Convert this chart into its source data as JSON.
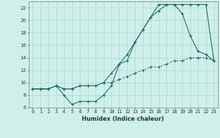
{
  "xlabel": "Humidex (Indice chaleur)",
  "bg_color": "#cff0ea",
  "grid_color": "#aad4cc",
  "line_color": "#1a6b5a",
  "xlim": [
    -0.5,
    23.5
  ],
  "ylim": [
    6,
    23
  ],
  "xticks": [
    0,
    1,
    2,
    3,
    4,
    5,
    6,
    7,
    8,
    9,
    10,
    11,
    12,
    13,
    14,
    15,
    16,
    17,
    18,
    19,
    20,
    21,
    22,
    23
  ],
  "yticks": [
    6,
    8,
    10,
    12,
    14,
    16,
    18,
    20,
    22
  ],
  "series1_x": [
    0,
    1,
    2,
    3,
    4,
    5,
    6,
    7,
    8,
    9,
    10,
    11,
    12,
    13,
    14,
    15,
    16,
    17,
    18,
    19,
    20,
    21,
    22,
    23
  ],
  "series1_y": [
    9.0,
    9.0,
    9.0,
    9.5,
    9.0,
    9.0,
    9.5,
    9.5,
    9.5,
    10.0,
    11.5,
    13.0,
    14.5,
    16.5,
    18.5,
    20.5,
    22.5,
    22.5,
    22.5,
    22.5,
    22.5,
    22.5,
    22.5,
    13.5
  ],
  "series2_x": [
    0,
    1,
    2,
    3,
    4,
    5,
    6,
    7,
    8,
    9,
    10,
    11,
    12,
    13,
    14,
    15,
    16,
    17,
    18,
    19,
    20,
    21,
    22,
    23
  ],
  "series2_y": [
    9.0,
    9.0,
    9.0,
    9.5,
    8.0,
    6.5,
    7.0,
    7.0,
    7.0,
    8.0,
    9.5,
    13.0,
    13.5,
    16.5,
    18.5,
    20.5,
    21.5,
    22.5,
    22.5,
    21.0,
    17.5,
    15.0,
    14.5,
    13.5
  ],
  "series3_x": [
    0,
    1,
    2,
    3,
    4,
    5,
    6,
    7,
    8,
    9,
    10,
    11,
    12,
    13,
    14,
    15,
    16,
    17,
    18,
    19,
    20,
    21,
    22,
    23
  ],
  "series3_y": [
    9.0,
    9.0,
    9.0,
    9.5,
    9.0,
    9.0,
    9.5,
    9.5,
    9.5,
    10.0,
    10.0,
    10.5,
    11.0,
    11.5,
    12.0,
    12.5,
    12.5,
    13.0,
    13.5,
    13.5,
    14.0,
    14.0,
    14.0,
    13.5
  ],
  "tick_fontsize": 5,
  "xlabel_fontsize": 6
}
